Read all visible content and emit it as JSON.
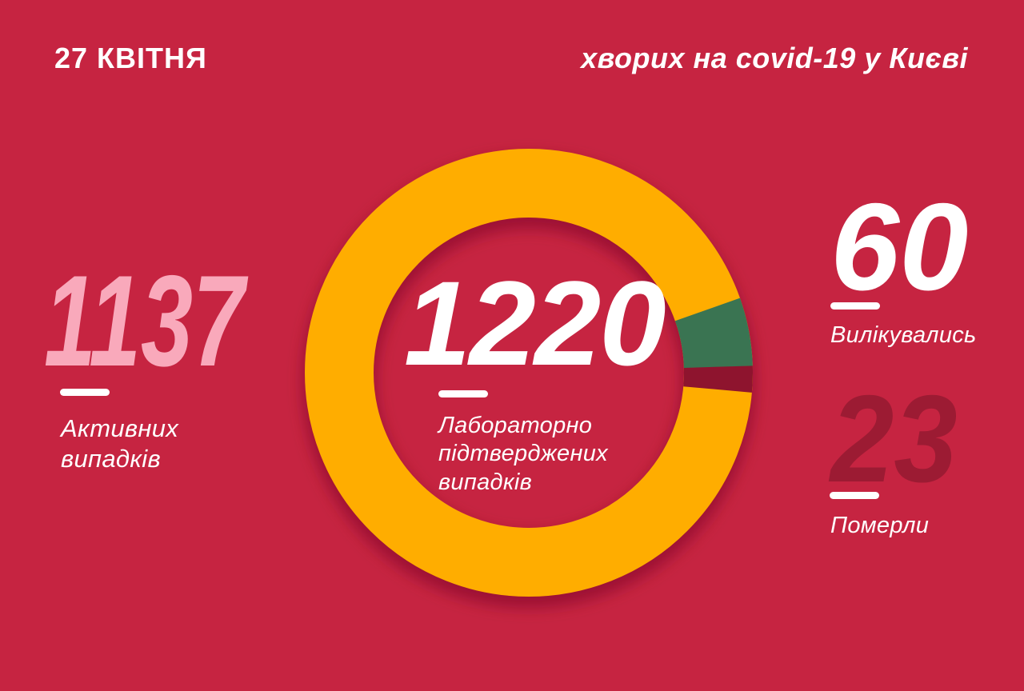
{
  "colors": {
    "background": "#C62441",
    "white": "#FFFFFF",
    "pink": "#F9A9BB",
    "orange": "#FFAD00",
    "green": "#3A7452",
    "maroon": "#9C1B33",
    "maroon_segment": "#8E142E"
  },
  "header": {
    "date": "27 КВІТНЯ",
    "title": "хворих на covid-19 у Києві"
  },
  "stats": {
    "active": {
      "value": "1137",
      "label": "Активних\nвипадків"
    },
    "confirmed": {
      "value": "1220",
      "label": "Лабораторно\nпідтверджених\nвипадків"
    },
    "recovered": {
      "value": "60",
      "label": "Вилікувались"
    },
    "died": {
      "value": "23",
      "label": "Померли"
    }
  },
  "chart_data": {
    "type": "pie",
    "donut": true,
    "title": "27 КВІТНЯ — хворих на covid-19 у Києві",
    "total": 1220,
    "center_value": "1220",
    "center_label": "Лабораторно підтверджених випадків",
    "segments": [
      {
        "name": "Активних випадків",
        "value": 1137,
        "color": "#FFAD00"
      },
      {
        "name": "Вилікувались",
        "value": 60,
        "color": "#3A7452"
      },
      {
        "name": "Померли",
        "value": 23,
        "color": "#8E142E"
      }
    ],
    "start_angle_deg_from_3oclock": -19.4,
    "hole_ratio": 0.69,
    "legend": "none"
  }
}
